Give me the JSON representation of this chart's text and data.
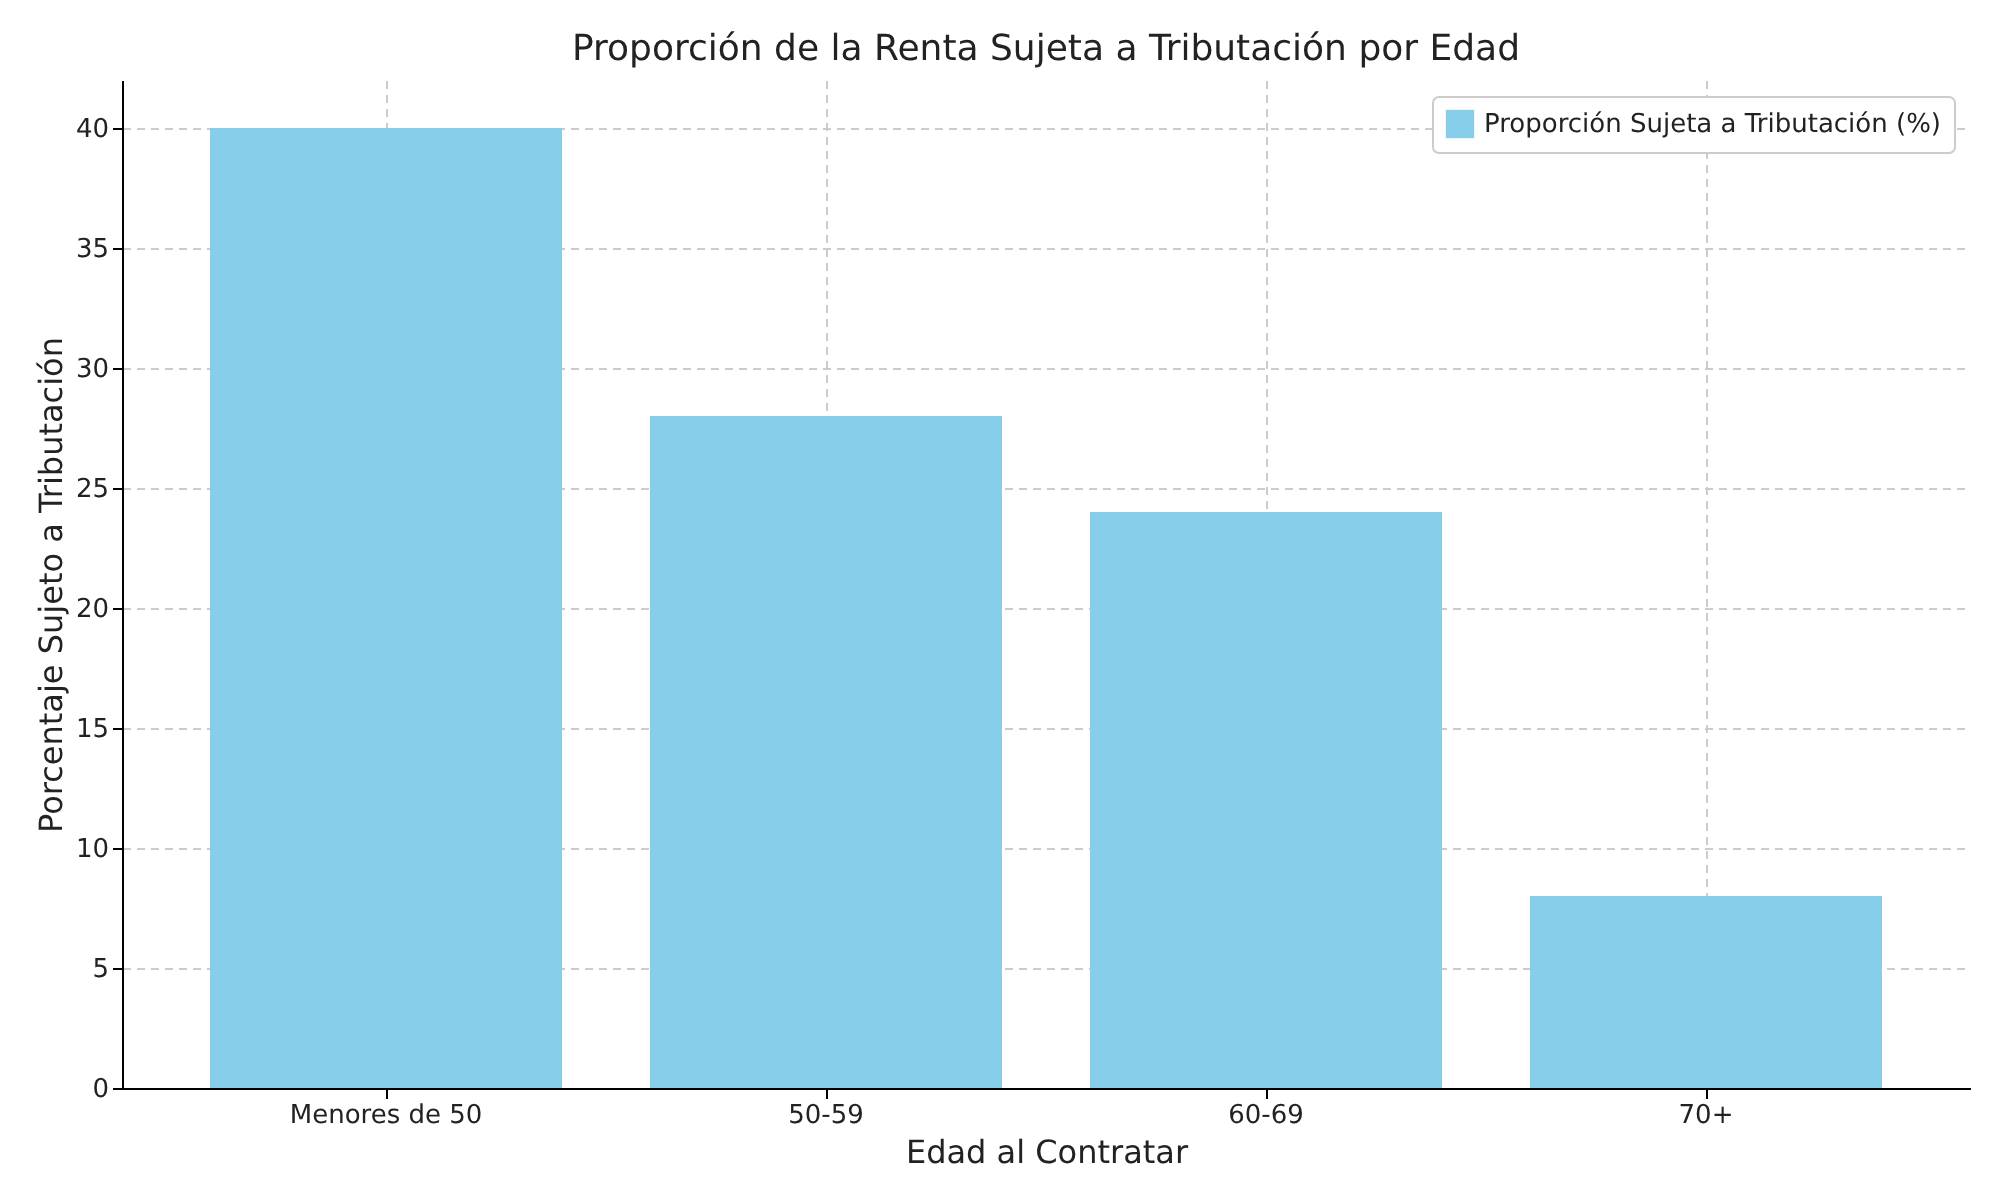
{
  "chart_data": {
    "type": "bar",
    "title": "Proporción de la Renta Sujeta a Tributación por Edad",
    "xlabel": "Edad al Contratar",
    "ylabel": "Porcentaje Sujeto a Tributación",
    "categories": [
      "Menores de 50",
      "50-59",
      "60-69",
      "70+"
    ],
    "series": [
      {
        "name": "Proporción Sujeta a Tributación (%)",
        "color": "#87ceeb",
        "values": [
          40,
          28,
          24,
          8
        ]
      }
    ],
    "ylim": [
      0,
      42
    ],
    "yticks": [
      0,
      5,
      10,
      15,
      20,
      25,
      30,
      35,
      40
    ],
    "grid": true,
    "legend": "top right"
  }
}
